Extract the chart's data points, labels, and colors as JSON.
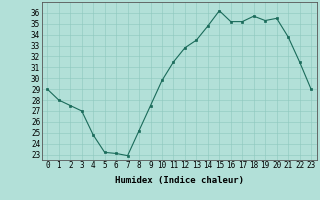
{
  "x": [
    0,
    1,
    2,
    3,
    4,
    5,
    6,
    7,
    8,
    9,
    10,
    11,
    12,
    13,
    14,
    15,
    16,
    17,
    18,
    19,
    20,
    21,
    22,
    23
  ],
  "y": [
    29,
    28,
    27.5,
    27,
    24.8,
    23.2,
    23.1,
    22.9,
    25.2,
    27.5,
    29.8,
    31.5,
    32.8,
    33.5,
    34.8,
    36.2,
    35.2,
    35.2,
    35.7,
    35.3,
    35.5,
    33.8,
    31.5,
    29
  ],
  "line_color": "#1a6b5a",
  "marker": "s",
  "marker_size": 1.8,
  "bg_color": "#b2e0d8",
  "grid_color": "#8ec8be",
  "xlabel": "Humidex (Indice chaleur)",
  "xlim": [
    -0.5,
    23.5
  ],
  "ylim": [
    22.5,
    37.0
  ],
  "xticks": [
    0,
    1,
    2,
    3,
    4,
    5,
    6,
    7,
    8,
    9,
    10,
    11,
    12,
    13,
    14,
    15,
    16,
    17,
    18,
    19,
    20,
    21,
    22,
    23
  ],
  "yticks": [
    23,
    24,
    25,
    26,
    27,
    28,
    29,
    30,
    31,
    32,
    33,
    34,
    35,
    36
  ],
  "xlabel_fontsize": 6.5,
  "tick_fontsize": 5.5
}
